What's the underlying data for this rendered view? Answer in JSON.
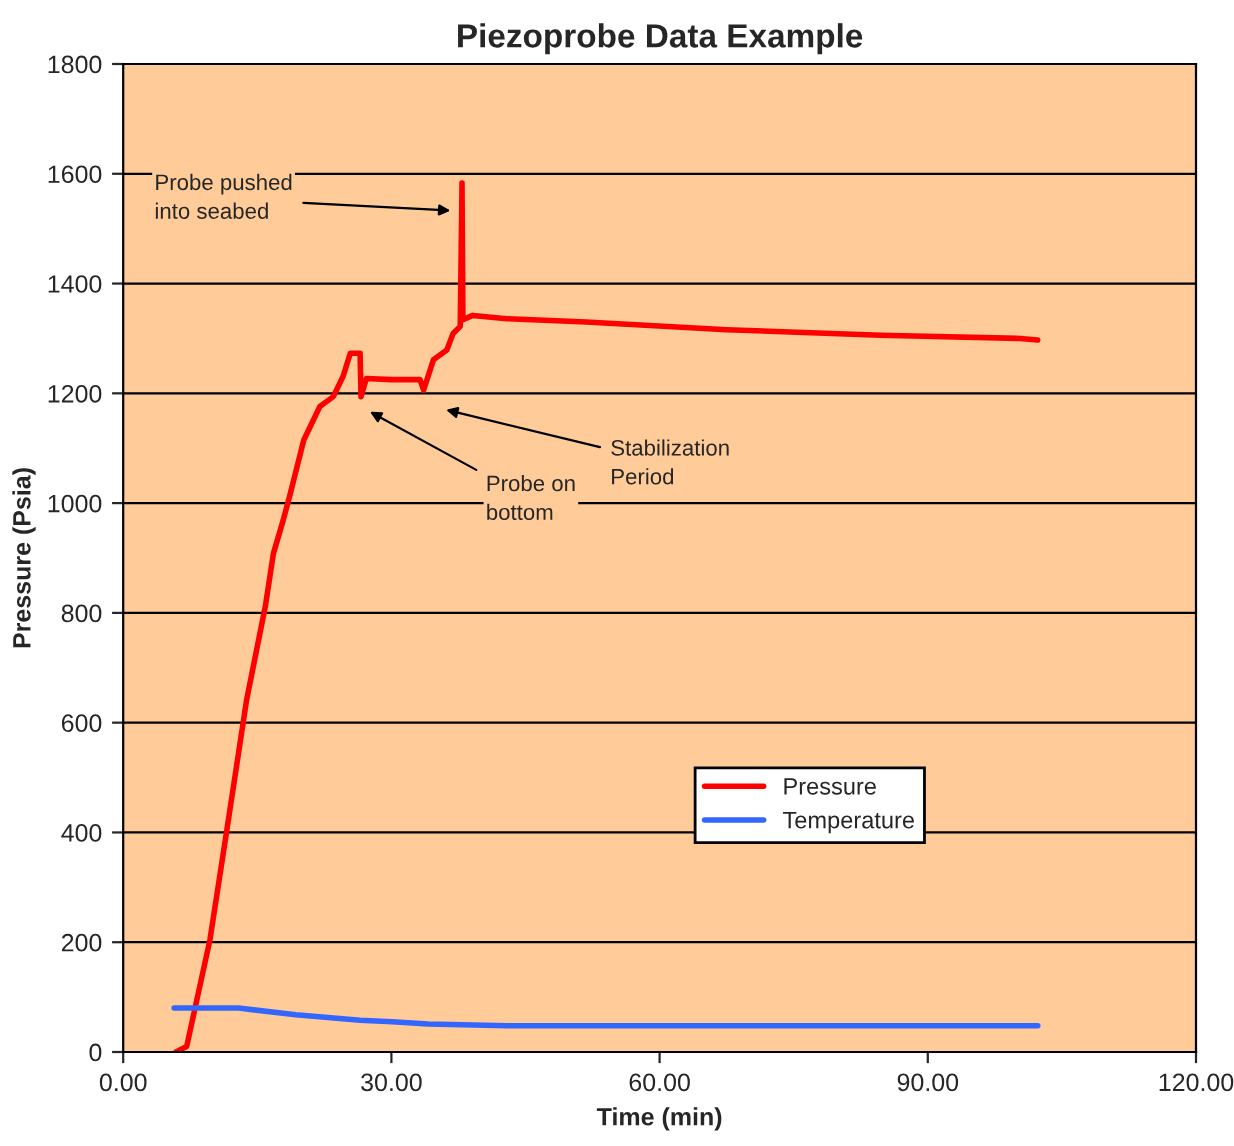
{
  "chart_data": {
    "type": "line",
    "title": "Piezoprobe Data Example",
    "xlabel": "Time (min)",
    "ylabel": "Pressure (Psia)",
    "series": [
      {
        "name": "Pressure",
        "color": "#ff0000",
        "x": [
          5.9,
          7.1,
          9.7,
          11.6,
          13.8,
          15.9,
          16.8,
          17.9,
          18.7,
          20.2,
          22.0,
          23.5,
          24.6,
          25.4,
          26.5,
          26.6,
          27.2,
          30.0,
          33.2,
          33.6,
          34.7,
          36.2,
          36.9,
          37.7,
          37.9,
          38.0,
          39.1,
          42.9,
          51.8,
          67.5,
          84.7,
          100.3,
          102.3
        ],
        "values": [
          0,
          10,
          204,
          405,
          641,
          812,
          908,
          969,
          1018,
          1115,
          1176,
          1194,
          1231,
          1273,
          1273,
          1194,
          1227,
          1225,
          1225,
          1206,
          1261,
          1279,
          1309,
          1322,
          1583,
          1334,
          1342,
          1336,
          1330,
          1316,
          1306,
          1300,
          1297
        ]
      },
      {
        "name": "Temperature",
        "color": "#3366ff",
        "x": [
          5.7,
          12.9,
          19.3,
          26.5,
          30.1,
          34.1,
          43.0,
          102.3
        ],
        "values": [
          80,
          80,
          68,
          58,
          55,
          51,
          48,
          48
        ]
      }
    ],
    "xlim": [
      0,
      120
    ],
    "xticks": [
      {
        "value": 0,
        "label": "0.00"
      },
      {
        "value": 30,
        "label": "30.00"
      },
      {
        "value": 60,
        "label": "60.00"
      },
      {
        "value": 90,
        "label": "90.00"
      },
      {
        "value": 120,
        "label": "120.00"
      }
    ],
    "ylim": [
      0,
      1800
    ],
    "yticks": [
      0,
      200,
      400,
      600,
      800,
      1000,
      1200,
      1400,
      1600,
      1800
    ],
    "grid": "y",
    "legend": "bottom",
    "marker": "none",
    "line_style": "solid",
    "annotations": [
      {
        "text": "Probe pushed\ninto seabed",
        "x": 36.6,
        "y": 1533
      },
      "Probe on\nbottom",
      "Stabilization\nPeriod"
    ]
  }
}
